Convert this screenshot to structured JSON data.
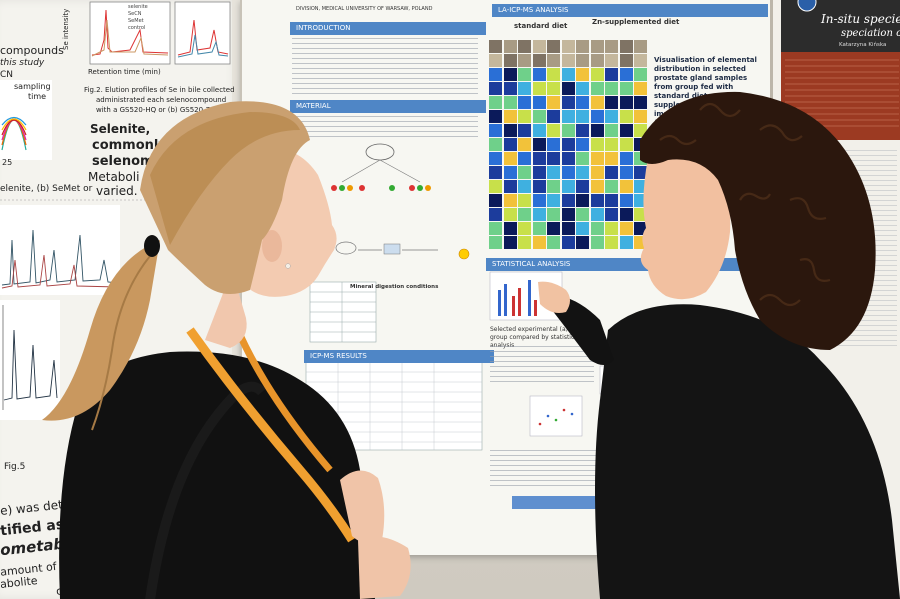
{
  "scene": {
    "background_color": "#d5d1c8"
  },
  "left_poster": {
    "lines": [
      "Se intensity",
      "Retention time (min)",
      "Fig.2. Elution profiles of Se in bile collected",
      "administrated each selenocompound",
      "with a GS520-HQ or (b) GS520-7G",
      "compounds",
      "this study",
      "CN",
      "sampling",
      "time",
      "25",
      "Selenite,",
      "commonly",
      "selenome",
      "Metaboli",
      "varied.",
      "elenite, (b) SeMet or",
      "Fig.5",
      "e) was detec",
      "tified as glutathio",
      "ometabolite",
      "amount of bile-admi",
      "abolite",
      "comparing"
    ],
    "legend": [
      "selenite",
      "SeCN",
      "SeMet",
      "control"
    ]
  },
  "middle_poster": {
    "section_intro": "INTRODUCTION",
    "section_material": "MATERIAL",
    "section_icp_ms": "ICP-MS RESULTS",
    "section_la_icp": "LA-ICP-MS ANALYSIS",
    "section_stats": "STATISTICAL ANALYSIS",
    "col_standard": "standard diet",
    "col_zinc": "Zn-supplemented diet",
    "visual_heading": "Visualisation of elemental distribution in selected prostate gland samples from group fed with standard diet and Zn-supplemented diet with implanted cancer cells (experimental group) and without cancer (control group)",
    "affiliation": "DIVISION, MEDICAL UNIVERSITY OF WARSAW, POLAND",
    "mineral_label": "Mineral digestion conditions",
    "stat_caption": "Selected experimental (a) control group compared by statistical analysis"
  },
  "right_poster": {
    "title": "In-situ species",
    "subtitle": "speciation of low",
    "author": "Katarzyna Kińska"
  },
  "icons": {
    "hair_tie": "hair-tie-icon",
    "earring": "earring-icon",
    "lanyard": "lanyard-icon"
  }
}
